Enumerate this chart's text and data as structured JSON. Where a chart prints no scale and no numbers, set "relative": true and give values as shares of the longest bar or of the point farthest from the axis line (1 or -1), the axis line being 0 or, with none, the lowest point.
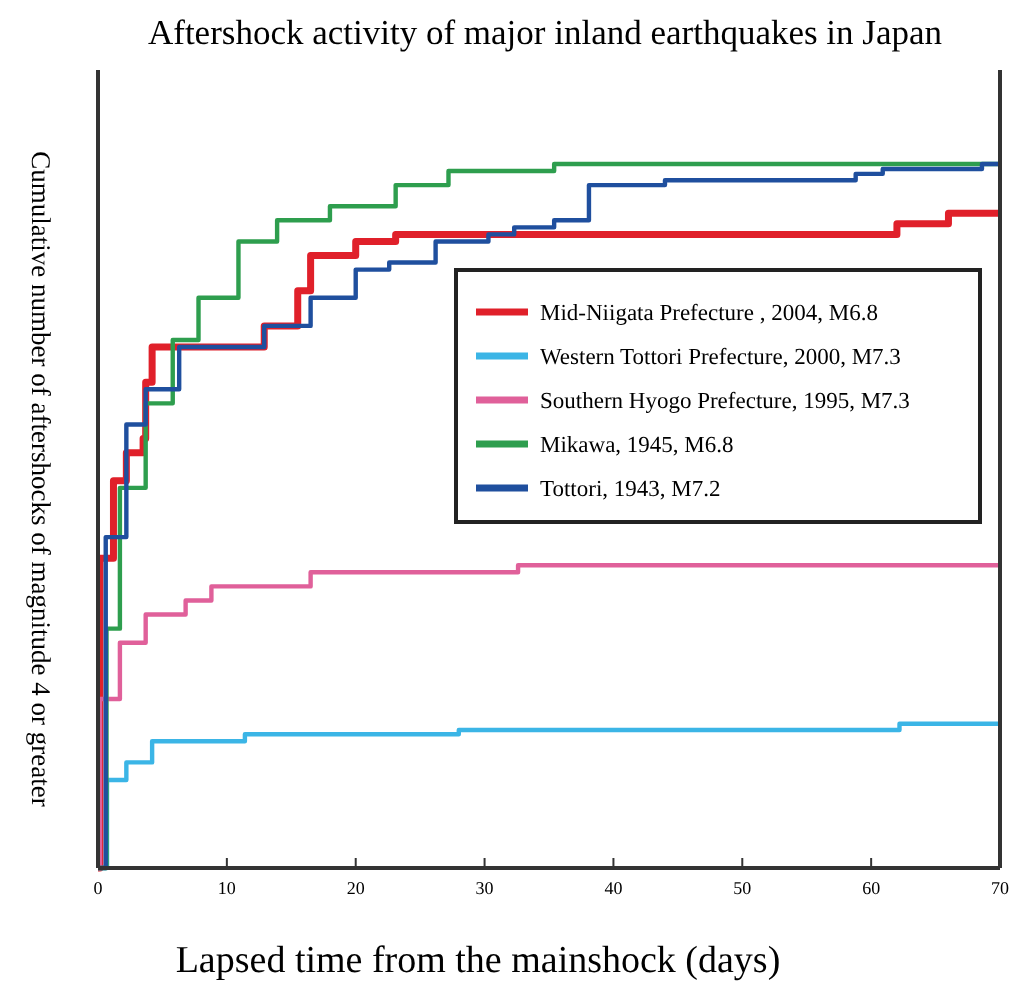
{
  "chart_data": {
    "type": "step",
    "title": "Aftershock activity of major inland earthquakes in Japan",
    "xlabel": "Lapsed time from the mainshock (days)",
    "ylabel": "Cumulative number of aftershocks of magnitude 4 or greater",
    "relative": true,
    "xlim": [
      0,
      70
    ],
    "xticks": [
      0,
      10,
      20,
      30,
      40,
      50,
      60,
      70
    ],
    "legend": "right",
    "series": [
      {
        "name": "Mid-Niigata Prefecture , 2004, M6.8",
        "color": "#e0202a",
        "x": [
          0,
          0.15,
          1.2,
          2.2,
          3.5,
          3.7,
          4.2,
          8.8,
          12.9,
          15.5,
          16.5,
          20,
          23.1,
          60.9,
          62,
          66,
          70
        ],
        "values": [
          0,
          0.44,
          0.55,
          0.59,
          0.61,
          0.69,
          0.74,
          0.74,
          0.77,
          0.82,
          0.87,
          0.89,
          0.9,
          0.9,
          0.915,
          0.93,
          0.93
        ]
      },
      {
        "name": "Western Tottori Prefecture, 2000, M7.3",
        "color": "#3bb5e6",
        "x": [
          0,
          0.7,
          2.2,
          4.2,
          11.4,
          28,
          62.2,
          70
        ],
        "values": [
          0,
          0.125,
          0.15,
          0.18,
          0.19,
          0.196,
          0.205,
          0.205
        ]
      },
      {
        "name": "Southern Hyogo Prefecture, 1995, M7.3",
        "color": "#e0609a",
        "x": [
          0,
          0.15,
          1.7,
          3.7,
          6.8,
          8.8,
          16.5,
          32.6,
          70
        ],
        "values": [
          0,
          0.24,
          0.32,
          0.36,
          0.38,
          0.4,
          0.42,
          0.43,
          0.43
        ]
      },
      {
        "name": "Mikawa, 1945, M6.8",
        "color": "#2e9e4e",
        "x": [
          0,
          0.66,
          1.7,
          3.7,
          5.8,
          7.8,
          10.9,
          13.9,
          18,
          23.1,
          27.2,
          35.4,
          70
        ],
        "values": [
          0,
          0.34,
          0.54,
          0.66,
          0.75,
          0.81,
          0.89,
          0.92,
          0.94,
          0.97,
          0.99,
          1,
          1
        ]
      },
      {
        "name": "Tottori, 1943, M7.2",
        "color": "#1f4f9e",
        "x": [
          0,
          0.6,
          2.2,
          3.7,
          6.3,
          12.9,
          16.5,
          20,
          22.6,
          26.2,
          30.3,
          32.3,
          35.4,
          38.1,
          44,
          58.8,
          60.9,
          68.6,
          70
        ],
        "values": [
          0,
          0.47,
          0.63,
          0.68,
          0.74,
          0.77,
          0.81,
          0.85,
          0.86,
          0.89,
          0.9,
          0.91,
          0.92,
          0.97,
          0.977,
          0.986,
          0.993,
          1,
          1
        ]
      }
    ]
  }
}
